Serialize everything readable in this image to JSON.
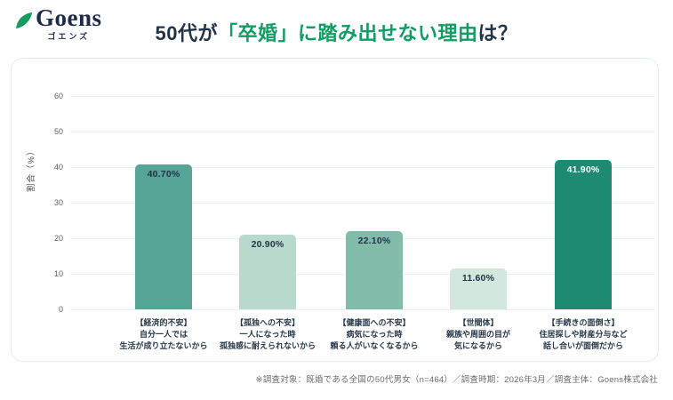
{
  "brand": {
    "name": "Goens",
    "subtitle": "ゴエンズ",
    "leaf_color": "#169c63",
    "text_color": "#1c2b49"
  },
  "title": {
    "prefix": "50代が",
    "highlight": "「卒婚」に踏み出せない理由",
    "suffix": "は？",
    "dark_color": "#22344a",
    "green_color": "#0f9e63"
  },
  "chart_data": {
    "type": "bar",
    "title": "50代が「卒婚」に踏み出せない理由は？",
    "xlabel": "",
    "ylabel": "割合（%）",
    "ylim": [
      0,
      60
    ],
    "yticks": [
      0,
      10,
      20,
      30,
      40,
      50,
      60
    ],
    "grid": true,
    "legend": "none",
    "categories": [
      [
        "【経済的不安】",
        "自分一人では",
        "生活が成り立たないから"
      ],
      [
        "【孤独への不安】",
        "一人になった時",
        "孤独感に耐えられないから"
      ],
      [
        "【健康面への不安】",
        "病気になった時",
        "頼る人がいなくなるから"
      ],
      [
        "【世間体】",
        "親族や周囲の目が",
        "気になるから"
      ],
      [
        "【手続きの面倒さ】",
        "住居探しや財産分与など",
        "話し合いが面倒だから"
      ]
    ],
    "values": [
      40.7,
      20.9,
      22.1,
      11.6,
      41.9
    ],
    "value_labels": [
      "40.70%",
      "20.90%",
      "22.10%",
      "11.60%",
      "41.90%"
    ],
    "bar_colors": [
      "#57a597",
      "#b9d9cc",
      "#81bcab",
      "#d3e7dc",
      "#1e8a72"
    ],
    "value_label_colors": [
      "#22344a",
      "#22344a",
      "#22344a",
      "#22344a",
      "#ffffff"
    ]
  },
  "footer": {
    "note": "※調査対象：既婚である全国の50代男女（n=464）／調査時期：2026年3月／調査主体：Goens株式会社"
  }
}
